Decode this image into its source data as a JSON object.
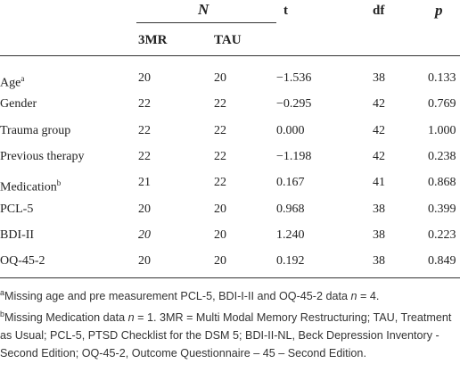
{
  "table": {
    "header": {
      "N": "N",
      "t": "t",
      "df": "df",
      "p": "p",
      "sub": [
        "3MR",
        "TAU"
      ]
    },
    "rows": [
      {
        "label": "Age",
        "note": "a",
        "cells": [
          "20",
          "20",
          "−1.536",
          "38",
          "0.133"
        ]
      },
      {
        "label": "Gender",
        "cells": [
          "22",
          "22",
          "−0.295",
          "42",
          "0.769"
        ]
      },
      {
        "label": "Trauma group",
        "cells": [
          "22",
          "22",
          "0.000",
          "42",
          "1.000"
        ]
      },
      {
        "label": "Previous therapy",
        "cells": [
          "22",
          "22",
          "−1.198",
          "42",
          "0.238"
        ]
      },
      {
        "label": "Medication",
        "note": "b",
        "cells": [
          "21",
          "22",
          "0.167",
          "41",
          "0.868"
        ]
      },
      {
        "label": "PCL-5",
        "cells": [
          "20",
          "20",
          "0.968",
          "38",
          "0.399"
        ]
      },
      {
        "label": "BDI-II",
        "cells": [
          "20",
          "20",
          "1.240",
          "38",
          "0.223"
        ]
      },
      {
        "label": "OQ-45-2",
        "cells": [
          "20",
          "20",
          "0.192",
          "38",
          "0.849"
        ]
      }
    ]
  },
  "footnotes": [
    {
      "marker": "a",
      "parts": [
        "Missing age and pre measurement PCL-5, BDI-I-II and OQ-45-2 data ",
        "n",
        " = 4."
      ]
    },
    {
      "marker": "b",
      "parts": [
        "Missing Medication data ",
        "n",
        " = 1. 3MR = Multi Modal Memory Restructuring; TAU, Treatment as Usual; PCL-5, PTSD Checklist for the DSM 5; BDI-II-NL, Beck Depression Inventory - Second Edition; OQ-45-2, Outcome Questionnaire – 45 – Second Edition."
      ]
    }
  ]
}
